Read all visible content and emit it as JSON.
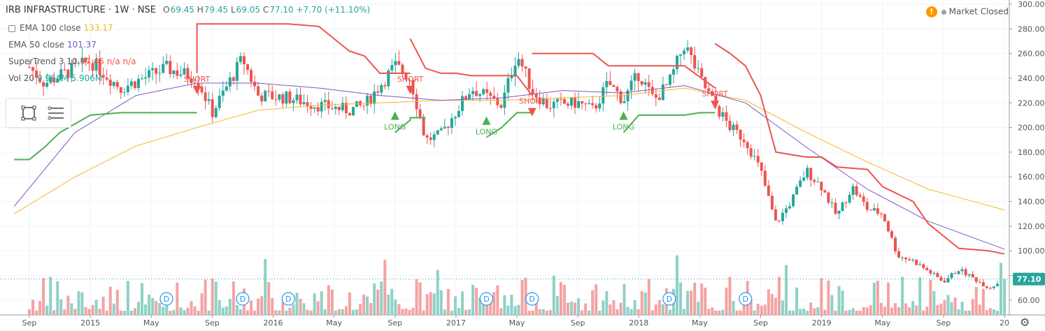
{
  "header": {
    "symbol": "IRB INFRASTRUCTURE · 1W · NSE",
    "open_label": "O",
    "open": "69.45",
    "high_label": "H",
    "high": "79.45",
    "low_label": "L",
    "low": "69.05",
    "close_label": "C",
    "close": "77.10",
    "change": "+7.70 (+11.10%)"
  },
  "indicators": [
    {
      "label": "EMA 100 close",
      "value": "133.17",
      "color": "#f5b629"
    },
    {
      "label": "EMA 50 close",
      "value": "101.37",
      "color": "#7e57c2"
    },
    {
      "label": "SuperTrend 3 10",
      "value": "97.46 n/a n/a",
      "color": "#ef5350"
    },
    {
      "label": "Vol 20",
      "value": "9.964M 5.906M",
      "color": "#26a69a"
    }
  ],
  "status": {
    "warning_icon": "!",
    "text": "Market Closed"
  },
  "colors": {
    "up": "#26a69a",
    "down": "#ef5350",
    "vol_up": "#8fd1c6",
    "vol_down": "#f4a3a3",
    "ema100": "#f5b629",
    "ema50": "#7e57c2",
    "st_short": "#ef5350",
    "st_long": "#4caf50"
  },
  "chart_data": {
    "type": "line",
    "title": "IRB INFRASTRUCTURE · 1W · NSE",
    "y_ticks": [
      60,
      80,
      100,
      120,
      140,
      160,
      180,
      200,
      220,
      240,
      260,
      280,
      300
    ],
    "ylim": [
      48,
      300
    ],
    "last_price_label": "77.10",
    "x_ticks": [
      "Sep",
      "2015",
      "May",
      "Sep",
      "2016",
      "May",
      "Sep",
      "2017",
      "May",
      "Sep",
      "2018",
      "May",
      "Sep",
      "2019",
      "May",
      "Sep",
      "20"
    ],
    "signals": [
      {
        "label": "SHORT",
        "date": "2015-08"
      },
      {
        "label": "SHORT",
        "date": "2016-10"
      },
      {
        "label": "SHORT",
        "date": "2017-06"
      },
      {
        "label": "SHORT",
        "date": "2018-06"
      },
      {
        "label": "LONG",
        "date": "2016-09"
      },
      {
        "label": "LONG",
        "date": "2017-03"
      },
      {
        "label": "LONG",
        "date": "2017-12"
      }
    ],
    "dividend_marker": "D",
    "dividend_dates": [
      "2015-06",
      "2015-11",
      "2016-02",
      "2017-03",
      "2017-06",
      "2018-03",
      "2018-08"
    ],
    "price_path": [
      [
        "2014-08",
        262
      ],
      [
        "2014-10",
        236
      ],
      [
        "2015-01",
        254
      ],
      [
        "2015-03",
        232
      ],
      [
        "2015-06",
        248
      ],
      [
        "2015-08",
        240
      ],
      [
        "2015-09",
        212
      ],
      [
        "2015-11",
        256
      ],
      [
        "2015-12",
        226
      ],
      [
        "2016-02",
        224
      ],
      [
        "2016-04",
        218
      ],
      [
        "2016-06",
        214
      ],
      [
        "2016-07",
        218
      ],
      [
        "2016-09",
        250
      ],
      [
        "2016-10",
        240
      ],
      [
        "2016-11",
        190
      ],
      [
        "2016-12",
        194
      ],
      [
        "2017-02",
        232
      ],
      [
        "2017-04",
        218
      ],
      [
        "2017-05",
        260
      ],
      [
        "2017-06",
        230
      ],
      [
        "2017-07",
        218
      ],
      [
        "2017-09",
        220
      ],
      [
        "2017-10",
        214
      ],
      [
        "2017-11",
        236
      ],
      [
        "2017-12",
        222
      ],
      [
        "2018-01",
        244
      ],
      [
        "2018-02",
        222
      ],
      [
        "2018-03",
        236
      ],
      [
        "2018-04",
        268
      ],
      [
        "2018-05",
        240
      ],
      [
        "2018-06",
        218
      ],
      [
        "2018-07",
        200
      ],
      [
        "2018-08",
        190
      ],
      [
        "2018-09",
        165
      ],
      [
        "2018-10",
        122
      ],
      [
        "2018-11",
        140
      ],
      [
        "2018-12",
        165
      ],
      [
        "2019-01",
        152
      ],
      [
        "2019-02",
        128
      ],
      [
        "2019-03",
        152
      ],
      [
        "2019-04",
        134
      ],
      [
        "2019-05",
        130
      ],
      [
        "2019-06",
        96
      ],
      [
        "2019-07",
        92
      ],
      [
        "2019-09",
        75
      ],
      [
        "2019-10",
        85
      ],
      [
        "2019-12",
        70
      ],
      [
        "2020-01",
        77.1
      ]
    ],
    "ema100": [
      [
        "2014-08",
        130
      ],
      [
        "2014-12",
        160
      ],
      [
        "2015-04",
        185
      ],
      [
        "2015-08",
        200
      ],
      [
        "2015-12",
        214
      ],
      [
        "2016-04",
        218
      ],
      [
        "2016-08",
        220
      ],
      [
        "2016-12",
        222
      ],
      [
        "2017-04",
        222
      ],
      [
        "2017-08",
        224
      ],
      [
        "2017-12",
        226
      ],
      [
        "2018-04",
        232
      ],
      [
        "2018-08",
        222
      ],
      [
        "2018-12",
        196
      ],
      [
        "2019-04",
        172
      ],
      [
        "2019-08",
        150
      ],
      [
        "2020-01",
        133.17
      ]
    ],
    "ema50": [
      [
        "2014-08",
        136
      ],
      [
        "2014-12",
        196
      ],
      [
        "2015-04",
        226
      ],
      [
        "2015-08",
        236
      ],
      [
        "2015-12",
        236
      ],
      [
        "2016-04",
        232
      ],
      [
        "2016-08",
        226
      ],
      [
        "2016-12",
        222
      ],
      [
        "2017-04",
        224
      ],
      [
        "2017-08",
        230
      ],
      [
        "2017-12",
        228
      ],
      [
        "2018-04",
        234
      ],
      [
        "2018-08",
        220
      ],
      [
        "2018-12",
        184
      ],
      [
        "2019-04",
        150
      ],
      [
        "2019-08",
        124
      ],
      [
        "2020-01",
        101.37
      ]
    ],
    "supertrend_short": [
      [
        [
          "2015-08",
          244
        ],
        [
          "2015-08",
          284
        ],
        [
          "2016-02",
          284
        ],
        [
          "2016-04",
          282
        ],
        [
          "2016-06",
          262
        ],
        [
          "2016-07",
          258
        ],
        [
          "2016-08",
          244
        ],
        [
          "2016-10",
          244
        ]
      ],
      [
        [
          "2016-10",
          272
        ],
        [
          "2016-11",
          248
        ],
        [
          "2016-12",
          244
        ],
        [
          "2017-01",
          244
        ],
        [
          "2017-02",
          242
        ],
        [
          "2017-05",
          242
        ],
        [
          "2017-06",
          226
        ]
      ],
      [
        [
          "2017-06",
          260
        ],
        [
          "2017-10",
          260
        ],
        [
          "2017-11",
          250
        ],
        [
          "2018-01",
          250
        ],
        [
          "2018-04",
          250
        ],
        [
          "2018-06",
          232
        ]
      ],
      [
        [
          "2018-06",
          268
        ],
        [
          "2018-07",
          260
        ],
        [
          "2018-08",
          250
        ],
        [
          "2018-09",
          226
        ],
        [
          "2018-10",
          180
        ],
        [
          "2018-12",
          176
        ],
        [
          "2019-01",
          176
        ],
        [
          "2019-02",
          168
        ],
        [
          "2019-04",
          166
        ],
        [
          "2019-05",
          152
        ],
        [
          "2019-07",
          140
        ],
        [
          "2019-08",
          122
        ],
        [
          "2019-10",
          102
        ],
        [
          "2019-12",
          100
        ],
        [
          "2020-01",
          97.46
        ]
      ]
    ],
    "supertrend_long": [
      [
        [
          "2014-08",
          174
        ],
        [
          "2014-09",
          174
        ],
        [
          "2014-10",
          184
        ],
        [
          "2014-11",
          196
        ],
        [
          "2015-01",
          210
        ],
        [
          "2015-03",
          212
        ],
        [
          "2015-05",
          212
        ],
        [
          "2015-08",
          212
        ]
      ],
      [
        [
          "2016-09",
          196
        ],
        [
          "2016-10",
          206
        ],
        [
          "2016-10",
          208
        ],
        [
          "2016-11",
          208
        ]
      ],
      [
        [
          "2017-03",
          192
        ],
        [
          "2017-04",
          200
        ],
        [
          "2017-05",
          212
        ],
        [
          "2017-06",
          212
        ]
      ],
      [
        [
          "2017-12",
          196
        ],
        [
          "2018-01",
          210
        ],
        [
          "2018-04",
          210
        ],
        [
          "2018-05",
          212
        ],
        [
          "2018-06",
          212
        ]
      ]
    ]
  }
}
